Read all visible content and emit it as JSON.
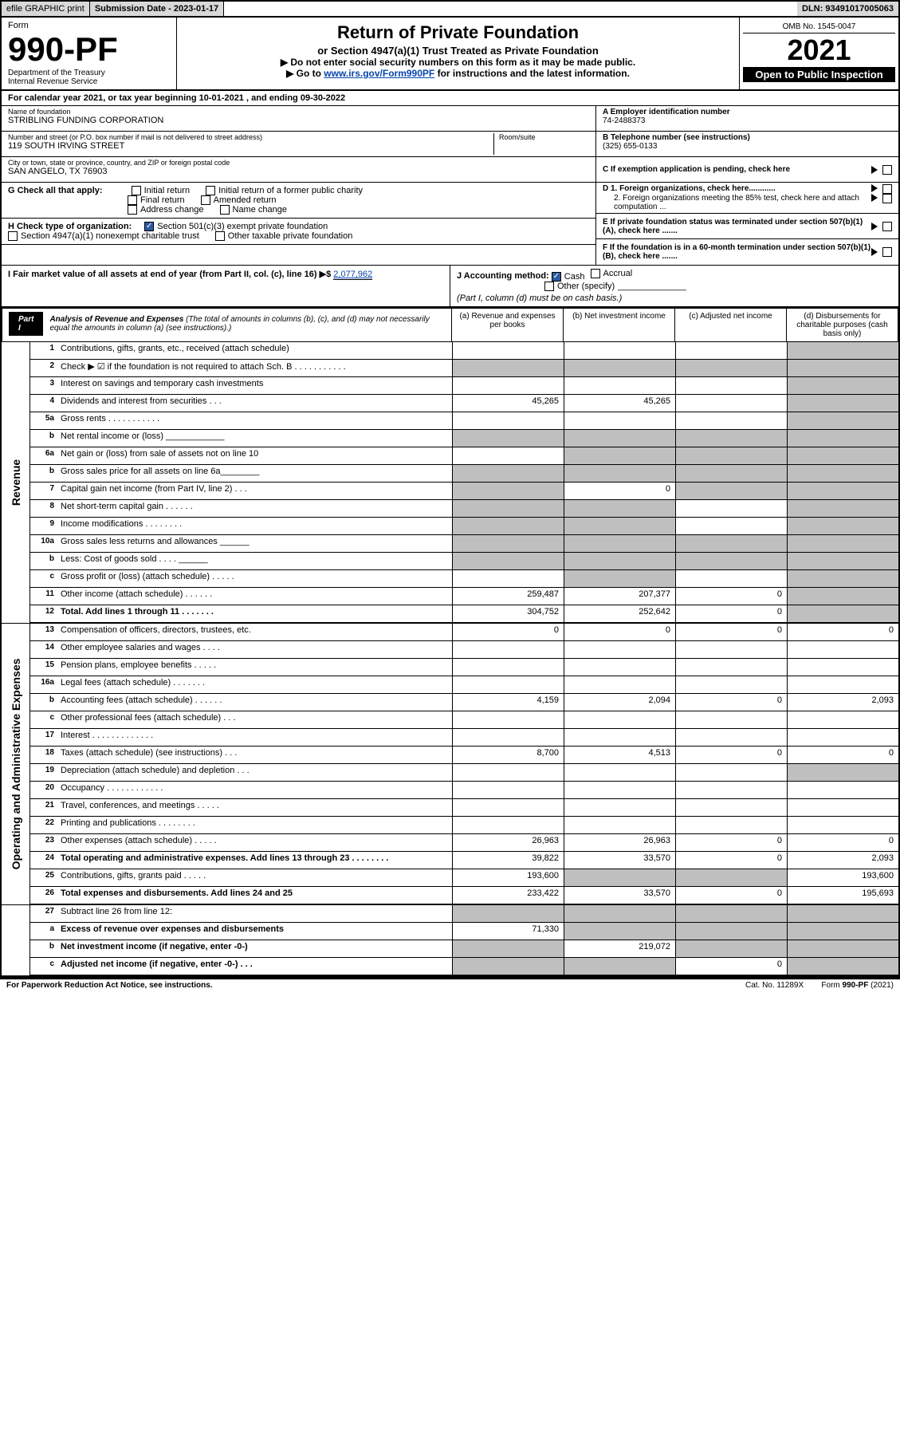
{
  "top": {
    "efile": "efile GRAPHIC print",
    "subdate_lbl": "Submission Date - ",
    "subdate": "2023-01-17",
    "dln_lbl": "DLN: ",
    "dln": "93491017005063"
  },
  "header": {
    "form_word": "Form",
    "form_no": "990-PF",
    "dept": "Department of the Treasury",
    "irs": "Internal Revenue Service",
    "title": "Return of Private Foundation",
    "subtitle": "or Section 4947(a)(1) Trust Treated as Private Foundation",
    "note1": "▶ Do not enter social security numbers on this form as it may be made public.",
    "note2_pre": "▶ Go to ",
    "note2_link": "www.irs.gov/Form990PF",
    "note2_post": " for instructions and the latest information.",
    "omb": "OMB No. 1545-0047",
    "year": "2021",
    "open": "Open to Public Inspection"
  },
  "calyear": {
    "pre": "For calendar year 2021, or tax year beginning ",
    "begin": "10-01-2021",
    "mid": " , and ending ",
    "end": "09-30-2022"
  },
  "info": {
    "name_lbl": "Name of foundation",
    "name": "STRIBLING FUNDING CORPORATION",
    "addr_lbl": "Number and street (or P.O. box number if mail is not delivered to street address)",
    "addr": "119 SOUTH IRVING STREET",
    "room_lbl": "Room/suite",
    "city_lbl": "City or town, state or province, country, and ZIP or foreign postal code",
    "city": "SAN ANGELO, TX  76903",
    "ein_lbl": "A Employer identification number",
    "ein": "74-2488373",
    "tel_lbl": "B Telephone number (see instructions)",
    "tel": "(325) 655-0133",
    "c": "C If exemption application is pending, check here",
    "d1": "D 1. Foreign organizations, check here............",
    "d2": "2. Foreign organizations meeting the 85% test, check here and attach computation ...",
    "e": "E If private foundation status was terminated under section 507(b)(1)(A), check here .......",
    "f": "F If the foundation is in a 60-month termination under section 507(b)(1)(B), check here .......",
    "g_lbl": "G Check all that apply:",
    "g_items": [
      "Initial return",
      "Initial return of a former public charity",
      "Final return",
      "Amended return",
      "Address change",
      "Name change"
    ],
    "h_lbl": "H Check type of organization:",
    "h1": "Section 501(c)(3) exempt private foundation",
    "h2": "Section 4947(a)(1) nonexempt charitable trust",
    "h3": "Other taxable private foundation",
    "i_lbl": "I Fair market value of all assets at end of year (from Part II, col. (c), line 16) ▶$ ",
    "i_val": "2,077,962",
    "j_lbl": "J Accounting method:",
    "j_cash": "Cash",
    "j_accrual": "Accrual",
    "j_other": "Other (specify)",
    "j_note": "(Part I, column (d) must be on cash basis.)"
  },
  "part1": {
    "badge": "Part I",
    "title": "Analysis of Revenue and Expenses",
    "title_note": "(The total of amounts in columns (b), (c), and (d) may not necessarily equal the amounts in column (a) (see instructions).)",
    "cols": [
      "(a) Revenue and expenses per books",
      "(b) Net investment income",
      "(c) Adjusted net income",
      "(d) Disbursements for charitable purposes (cash basis only)"
    ]
  },
  "sections": [
    {
      "label": "Revenue",
      "rows": [
        {
          "n": "1",
          "d": "Contributions, gifts, grants, etc., received (attach schedule)",
          "v": [
            "",
            "",
            "",
            ""
          ],
          "g": [
            0,
            0,
            0,
            1
          ]
        },
        {
          "n": "2",
          "d": "Check ▶ ☑ if the foundation is not required to attach Sch. B   .  .  .  .  .  .  .  .  .  .  .",
          "v": [
            "",
            "",
            "",
            ""
          ],
          "g": [
            1,
            1,
            1,
            1
          ]
        },
        {
          "n": "3",
          "d": "Interest on savings and temporary cash investments",
          "v": [
            "",
            "",
            "",
            ""
          ],
          "g": [
            0,
            0,
            0,
            1
          ]
        },
        {
          "n": "4",
          "d": "Dividends and interest from securities   .  .  .",
          "v": [
            "45,265",
            "45,265",
            "",
            ""
          ],
          "g": [
            0,
            0,
            0,
            1
          ]
        },
        {
          "n": "5a",
          "d": "Gross rents   .  .  .  .  .  .  .  .  .  .  .",
          "v": [
            "",
            "",
            "",
            ""
          ],
          "g": [
            0,
            0,
            0,
            1
          ]
        },
        {
          "n": "b",
          "d": "Net rental income or (loss) ____________",
          "v": [
            "",
            "",
            "",
            ""
          ],
          "g": [
            1,
            1,
            1,
            1
          ]
        },
        {
          "n": "6a",
          "d": "Net gain or (loss) from sale of assets not on line 10",
          "v": [
            "",
            "",
            "",
            ""
          ],
          "g": [
            0,
            1,
            1,
            1
          ]
        },
        {
          "n": "b",
          "d": "Gross sales price for all assets on line 6a________",
          "v": [
            "",
            "",
            "",
            ""
          ],
          "g": [
            1,
            1,
            1,
            1
          ]
        },
        {
          "n": "7",
          "d": "Capital gain net income (from Part IV, line 2)   .  .  .",
          "v": [
            "",
            "0",
            "",
            ""
          ],
          "g": [
            1,
            0,
            1,
            1
          ]
        },
        {
          "n": "8",
          "d": "Net short-term capital gain   .  .  .  .  .  .",
          "v": [
            "",
            "",
            "",
            ""
          ],
          "g": [
            1,
            1,
            0,
            1
          ]
        },
        {
          "n": "9",
          "d": "Income modifications   .  .  .  .  .  .  .  .",
          "v": [
            "",
            "",
            "",
            ""
          ],
          "g": [
            1,
            1,
            0,
            1
          ]
        },
        {
          "n": "10a",
          "d": "Gross sales less returns and allowances   ______",
          "v": [
            "",
            "",
            "",
            ""
          ],
          "g": [
            1,
            1,
            1,
            1
          ]
        },
        {
          "n": "b",
          "d": "Less: Cost of goods sold   .  .  .  .   ______",
          "v": [
            "",
            "",
            "",
            ""
          ],
          "g": [
            1,
            1,
            1,
            1
          ]
        },
        {
          "n": "c",
          "d": "Gross profit or (loss) (attach schedule)   .  .  .  .  .",
          "v": [
            "",
            "",
            "",
            ""
          ],
          "g": [
            0,
            1,
            0,
            1
          ]
        },
        {
          "n": "11",
          "d": "Other income (attach schedule)   .  .  .  .  .  .",
          "v": [
            "259,487",
            "207,377",
            "0",
            ""
          ],
          "g": [
            0,
            0,
            0,
            1
          ]
        },
        {
          "n": "12",
          "d": "Total. Add lines 1 through 11   .  .  .  .  .  .  .",
          "v": [
            "304,752",
            "252,642",
            "0",
            ""
          ],
          "g": [
            0,
            0,
            0,
            1
          ],
          "bold": true
        }
      ]
    },
    {
      "label": "Operating and Administrative Expenses",
      "rows": [
        {
          "n": "13",
          "d": "Compensation of officers, directors, trustees, etc.",
          "v": [
            "0",
            "0",
            "0",
            "0"
          ],
          "g": [
            0,
            0,
            0,
            0
          ]
        },
        {
          "n": "14",
          "d": "Other employee salaries and wages   .  .  .  .",
          "v": [
            "",
            "",
            "",
            ""
          ],
          "g": [
            0,
            0,
            0,
            0
          ]
        },
        {
          "n": "15",
          "d": "Pension plans, employee benefits   .  .  .  .  .",
          "v": [
            "",
            "",
            "",
            ""
          ],
          "g": [
            0,
            0,
            0,
            0
          ]
        },
        {
          "n": "16a",
          "d": "Legal fees (attach schedule)  .  .  .  .  .  .  .",
          "v": [
            "",
            "",
            "",
            ""
          ],
          "g": [
            0,
            0,
            0,
            0
          ]
        },
        {
          "n": "b",
          "d": "Accounting fees (attach schedule)  .  .  .  .  .  .",
          "v": [
            "4,159",
            "2,094",
            "0",
            "2,093"
          ],
          "g": [
            0,
            0,
            0,
            0
          ]
        },
        {
          "n": "c",
          "d": "Other professional fees (attach schedule)   .  .  .",
          "v": [
            "",
            "",
            "",
            ""
          ],
          "g": [
            0,
            0,
            0,
            0
          ]
        },
        {
          "n": "17",
          "d": "Interest  .  .  .  .  .  .  .  .  .  .  .  .  .",
          "v": [
            "",
            "",
            "",
            ""
          ],
          "g": [
            0,
            0,
            0,
            0
          ]
        },
        {
          "n": "18",
          "d": "Taxes (attach schedule) (see instructions)   .  .  .",
          "v": [
            "8,700",
            "4,513",
            "0",
            "0"
          ],
          "g": [
            0,
            0,
            0,
            0
          ]
        },
        {
          "n": "19",
          "d": "Depreciation (attach schedule) and depletion   .  .  .",
          "v": [
            "",
            "",
            "",
            ""
          ],
          "g": [
            0,
            0,
            0,
            1
          ]
        },
        {
          "n": "20",
          "d": "Occupancy  .  .  .  .  .  .  .  .  .  .  .  .",
          "v": [
            "",
            "",
            "",
            ""
          ],
          "g": [
            0,
            0,
            0,
            0
          ]
        },
        {
          "n": "21",
          "d": "Travel, conferences, and meetings  .  .  .  .  .",
          "v": [
            "",
            "",
            "",
            ""
          ],
          "g": [
            0,
            0,
            0,
            0
          ]
        },
        {
          "n": "22",
          "d": "Printing and publications  .  .  .  .  .  .  .  .",
          "v": [
            "",
            "",
            "",
            ""
          ],
          "g": [
            0,
            0,
            0,
            0
          ]
        },
        {
          "n": "23",
          "d": "Other expenses (attach schedule)  .  .  .  .  .",
          "v": [
            "26,963",
            "26,963",
            "0",
            "0"
          ],
          "g": [
            0,
            0,
            0,
            0
          ]
        },
        {
          "n": "24",
          "d": "Total operating and administrative expenses. Add lines 13 through 23   .  .  .  .  .  .  .  .",
          "v": [
            "39,822",
            "33,570",
            "0",
            "2,093"
          ],
          "g": [
            0,
            0,
            0,
            0
          ],
          "bold": true
        },
        {
          "n": "25",
          "d": "Contributions, gifts, grants paid   .  .  .  .  .",
          "v": [
            "193,600",
            "",
            "",
            "193,600"
          ],
          "g": [
            0,
            1,
            1,
            0
          ]
        },
        {
          "n": "26",
          "d": "Total expenses and disbursements. Add lines 24 and 25",
          "v": [
            "233,422",
            "33,570",
            "0",
            "195,693"
          ],
          "g": [
            0,
            0,
            0,
            0
          ],
          "bold": true
        }
      ]
    },
    {
      "label": "",
      "rows": [
        {
          "n": "27",
          "d": "Subtract line 26 from line 12:",
          "v": [
            "",
            "",
            "",
            ""
          ],
          "g": [
            1,
            1,
            1,
            1
          ]
        },
        {
          "n": "a",
          "d": "Excess of revenue over expenses and disbursements",
          "v": [
            "71,330",
            "",
            "",
            ""
          ],
          "g": [
            0,
            1,
            1,
            1
          ],
          "bold": true
        },
        {
          "n": "b",
          "d": "Net investment income (if negative, enter -0-)",
          "v": [
            "",
            "219,072",
            "",
            ""
          ],
          "g": [
            1,
            0,
            1,
            1
          ],
          "bold": true
        },
        {
          "n": "c",
          "d": "Adjusted net income (if negative, enter -0-)   .  .  .",
          "v": [
            "",
            "",
            "0",
            ""
          ],
          "g": [
            1,
            1,
            0,
            1
          ],
          "bold": true
        }
      ]
    }
  ],
  "footer": {
    "left": "For Paperwork Reduction Act Notice, see instructions.",
    "mid": "Cat. No. 11289X",
    "right": "Form 990-PF (2021)"
  }
}
